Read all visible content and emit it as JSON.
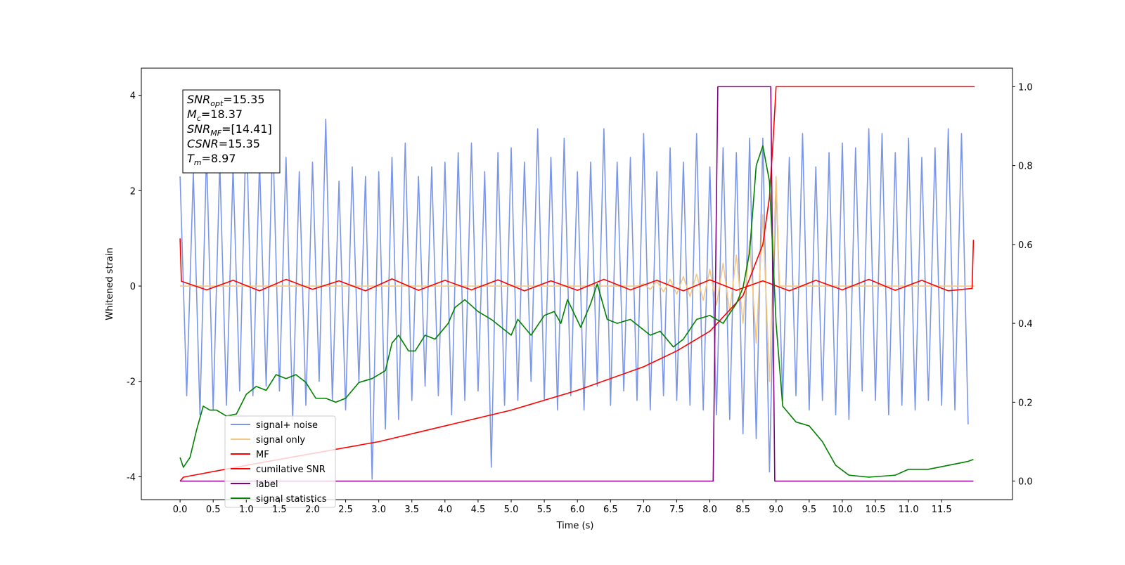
{
  "chart_data": {
    "type": "line",
    "xlabel": "Time (s)",
    "ylabel": "Whitened strain",
    "annotation_lines": [
      {
        "main": "SNR",
        "sub": "opt",
        "rest": "=15.35"
      },
      {
        "main": "M",
        "sub": "c",
        "rest": "=18.37"
      },
      {
        "main": "SNR",
        "sub": "MF",
        "rest": "=[14.41]"
      },
      {
        "main": "CSNR",
        "rest": "=15.35"
      },
      {
        "main": "T",
        "sub": "m",
        "rest": "=8.97"
      }
    ],
    "xlim": [
      -0.585,
      12.57
    ],
    "ylim": [
      -4.48,
      4.57
    ],
    "y2lim": [
      -0.047,
      1.047
    ],
    "xticks": [
      {
        "value": 0,
        "label": "0.0"
      },
      0.5,
      {
        "value": 1,
        "label": "1.0"
      },
      1.5,
      {
        "value": 2,
        "label": "2.0"
      },
      2.5,
      {
        "value": 3,
        "label": "3.0"
      },
      3.5,
      {
        "value": 4,
        "label": "4.0"
      },
      4.5,
      {
        "value": 5,
        "label": "5.0"
      },
      5.5,
      {
        "value": 6,
        "label": "6.0"
      },
      6.5,
      {
        "value": 7,
        "label": "7.0"
      },
      7.5,
      {
        "value": 8,
        "label": "8.0"
      },
      8.5,
      {
        "value": 9,
        "label": "9.0"
      },
      9.5,
      {
        "value": 10,
        "label": "10.0"
      },
      10.5,
      {
        "value": 11,
        "label": "11.0"
      },
      11.5
    ],
    "yticks": [
      -4,
      -2,
      0,
      2,
      4
    ],
    "y2ticks": [
      {
        "value": 0,
        "label": "0.0"
      },
      0.2,
      0.4,
      0.6,
      0.8,
      {
        "value": 1,
        "label": "1.0"
      }
    ],
    "legend": "lower left",
    "series": [
      {
        "name": "signal+ noise",
        "color": "#7b96e8",
        "x": [
          0,
          0.1,
          0.2,
          0.3,
          0.4,
          0.5,
          0.6,
          0.7,
          0.8,
          0.9,
          1,
          1.1,
          1.2,
          1.3,
          1.4,
          1.5,
          1.6,
          1.7,
          1.8,
          1.9,
          2,
          2.1,
          2.2,
          2.3,
          2.4,
          2.5,
          2.6,
          2.7,
          2.8,
          2.9,
          3,
          3.1,
          3.2,
          3.3,
          3.4,
          3.5,
          3.6,
          3.7,
          3.8,
          3.9,
          4,
          4.1,
          4.2,
          4.3,
          4.4,
          4.5,
          4.6,
          4.7,
          4.8,
          4.9,
          5,
          5.1,
          5.2,
          5.3,
          5.4,
          5.5,
          5.6,
          5.7,
          5.8,
          5.9,
          6,
          6.1,
          6.2,
          6.3,
          6.4,
          6.5,
          6.6,
          6.7,
          6.8,
          6.9,
          7,
          7.1,
          7.2,
          7.3,
          7.4,
          7.5,
          7.6,
          7.7,
          7.8,
          7.9,
          8,
          8.1,
          8.2,
          8.3,
          8.4,
          8.5,
          8.6,
          8.7,
          8.8,
          8.9,
          9,
          9.1,
          9.2,
          9.3,
          9.4,
          9.5,
          9.6,
          9.7,
          9.8,
          9.9,
          10,
          10.1,
          10.2,
          10.3,
          10.4,
          10.5,
          10.6,
          10.7,
          10.8,
          10.9,
          11,
          11.1,
          11.2,
          11.3,
          11.4,
          11.5,
          11.6,
          11.7,
          11.8,
          11.9
        ],
        "values": [
          2.3,
          -2.3,
          2.4,
          -2.7,
          2.8,
          -2.6,
          2.6,
          -2.5,
          2.5,
          -2.2,
          3.5,
          -2.3,
          2.6,
          -2.1,
          3.2,
          -2.2,
          2.7,
          -2.8,
          2.4,
          -2.5,
          2.6,
          -2.0,
          3.5,
          -2.4,
          2.2,
          -2.6,
          2.5,
          -2.0,
          2.3,
          -4.05,
          2.4,
          -3.0,
          2.7,
          -2.8,
          3.0,
          -2.4,
          2.3,
          -2.1,
          2.5,
          -2.3,
          2.6,
          -2.7,
          2.8,
          -2.4,
          3.0,
          -2.2,
          2.4,
          -3.8,
          2.8,
          -2.5,
          2.9,
          -2.4,
          2.6,
          -2.0,
          3.3,
          -2.4,
          2.7,
          -2.6,
          3.1,
          -2.3,
          2.4,
          -2.6,
          2.6,
          -2.1,
          3.3,
          -2.5,
          2.6,
          -2.2,
          2.7,
          -2.4,
          3.2,
          -2.6,
          2.4,
          -2.3,
          2.9,
          -2.4,
          2.6,
          -2.5,
          3.2,
          -2.6,
          2.5,
          -2.7,
          2.9,
          -2.8,
          2.8,
          -3.1,
          3.1,
          -3.2,
          3.1,
          -3.9,
          2.2,
          -2.4,
          2.7,
          -2.3,
          3.2,
          -2.6,
          2.5,
          -2.4,
          2.8,
          -2.7,
          3.0,
          -2.8,
          2.9,
          -2.2,
          3.3,
          -2.4,
          3.2,
          -2.7,
          2.8,
          -2.5,
          3.1,
          -2.6,
          2.7,
          -2.4,
          2.9,
          -2.5,
          3.3,
          -2.6,
          3.2,
          -2.9
        ]
      },
      {
        "name": "signal only",
        "color": "#f5c77e",
        "x": [
          0,
          6.9,
          7,
          7.1,
          7.2,
          7.3,
          7.4,
          7.5,
          7.6,
          7.7,
          7.8,
          7.9,
          8,
          8.1,
          8.2,
          8.3,
          8.4,
          8.5,
          8.6,
          8.7,
          8.8,
          8.9,
          9,
          9.05,
          12
        ],
        "values": [
          0,
          0,
          0.05,
          -0.07,
          0.1,
          -0.12,
          0.14,
          -0.17,
          0.2,
          -0.22,
          0.25,
          -0.3,
          0.35,
          -0.4,
          0.48,
          -0.55,
          0.65,
          -0.78,
          0.95,
          -1.2,
          1.5,
          -2.0,
          2.3,
          0,
          0
        ]
      },
      {
        "name": "MF",
        "color": "#ff0000",
        "x": [
          0,
          0.02,
          0.4,
          0.8,
          1.2,
          1.6,
          2,
          2.4,
          2.8,
          3.2,
          3.6,
          4,
          4.4,
          4.8,
          5.2,
          5.6,
          6,
          6.4,
          6.8,
          7.2,
          7.6,
          8,
          8.4,
          8.8,
          9.2,
          9.6,
          10,
          10.4,
          10.8,
          11.2,
          11.6,
          11.96,
          11.98
        ],
        "values": [
          1.0,
          0.1,
          -0.08,
          0.12,
          -0.1,
          0.14,
          -0.07,
          0.11,
          -0.1,
          0.15,
          -0.09,
          0.12,
          -0.08,
          0.13,
          -0.1,
          0.11,
          -0.09,
          0.14,
          -0.08,
          0.12,
          -0.1,
          0.13,
          -0.09,
          0.11,
          -0.1,
          0.12,
          -0.08,
          0.14,
          -0.09,
          0.12,
          -0.1,
          -0.05,
          0.97
        ]
      },
      {
        "name": "cumilative SNR",
        "color": "#ff0000",
        "axis": "y2",
        "x": [
          0,
          0.05,
          1,
          2,
          3,
          4,
          5,
          6,
          7,
          7.5,
          8,
          8.5,
          8.8,
          8.9,
          8.95,
          9,
          12
        ],
        "values": [
          0,
          0.01,
          0.04,
          0.07,
          0.1,
          0.14,
          0.18,
          0.23,
          0.29,
          0.33,
          0.38,
          0.47,
          0.6,
          0.72,
          0.85,
          1.0,
          1.0
        ]
      },
      {
        "name": "label",
        "color": "#800080",
        "axis": "y2",
        "x": [
          0,
          8.05,
          8.12,
          8.92,
          8.98,
          11.98
        ],
        "values": [
          0,
          0,
          1,
          1,
          0,
          0
        ]
      },
      {
        "name": "signal statistics",
        "color": "#008000",
        "axis": "y2",
        "x": [
          0,
          0.05,
          0.15,
          0.25,
          0.35,
          0.45,
          0.55,
          0.7,
          0.85,
          1,
          1.15,
          1.3,
          1.45,
          1.6,
          1.75,
          1.9,
          2.05,
          2.2,
          2.35,
          2.5,
          2.7,
          2.9,
          3.1,
          3.2,
          3.3,
          3.45,
          3.55,
          3.7,
          3.85,
          4.05,
          4.15,
          4.3,
          4.5,
          4.7,
          4.85,
          5,
          5.1,
          5.3,
          5.5,
          5.65,
          5.75,
          5.85,
          6.05,
          6.2,
          6.3,
          6.45,
          6.6,
          6.8,
          6.95,
          7.1,
          7.25,
          7.45,
          7.6,
          7.8,
          8,
          8.2,
          8.4,
          8.5,
          8.6,
          8.7,
          8.8,
          8.9,
          9,
          9.1,
          9.3,
          9.5,
          9.7,
          9.9,
          10.1,
          10.4,
          10.8,
          11,
          11.3,
          11.6,
          11.9,
          11.98
        ],
        "values": [
          0.06,
          0.035,
          0.06,
          0.13,
          0.19,
          0.18,
          0.18,
          0.165,
          0.17,
          0.22,
          0.24,
          0.23,
          0.27,
          0.26,
          0.27,
          0.25,
          0.21,
          0.21,
          0.2,
          0.21,
          0.25,
          0.26,
          0.28,
          0.35,
          0.37,
          0.33,
          0.33,
          0.37,
          0.36,
          0.4,
          0.44,
          0.46,
          0.43,
          0.41,
          0.39,
          0.37,
          0.41,
          0.37,
          0.42,
          0.43,
          0.4,
          0.46,
          0.39,
          0.45,
          0.5,
          0.41,
          0.4,
          0.41,
          0.39,
          0.37,
          0.38,
          0.34,
          0.36,
          0.41,
          0.42,
          0.4,
          0.45,
          0.49,
          0.58,
          0.8,
          0.85,
          0.76,
          0.4,
          0.19,
          0.15,
          0.14,
          0.1,
          0.04,
          0.015,
          0.01,
          0.015,
          0.03,
          0.03,
          0.04,
          0.05,
          0.055
        ]
      }
    ]
  }
}
